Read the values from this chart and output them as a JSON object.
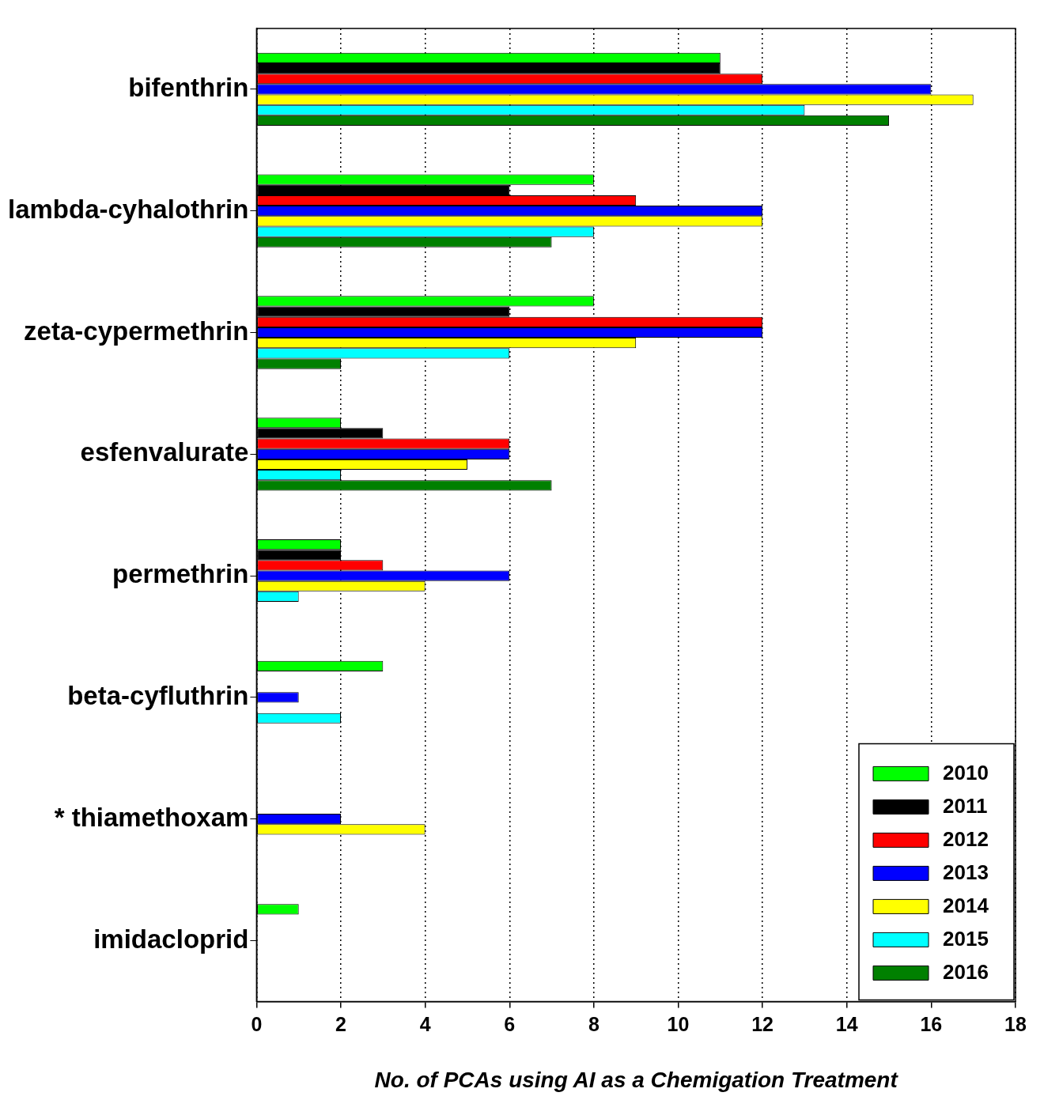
{
  "chart_data": {
    "type": "bar",
    "orientation": "horizontal",
    "categories": [
      "bifenthrin",
      "lambda-cyhalothrin",
      "zeta-cypermethrin",
      "esfenvalurate",
      "permethrin",
      "beta-cyfluthrin",
      "* thiamethoxam",
      "imidacloprid"
    ],
    "series": [
      {
        "name": "2010",
        "color": "#00ff00",
        "values": [
          11,
          8,
          8,
          2,
          2,
          3,
          0,
          1
        ]
      },
      {
        "name": "2011",
        "color": "#000000",
        "values": [
          11,
          6,
          6,
          3,
          2,
          0,
          0,
          0
        ]
      },
      {
        "name": "2012",
        "color": "#ff0000",
        "values": [
          12,
          9,
          12,
          6,
          3,
          0,
          0,
          0
        ]
      },
      {
        "name": "2013",
        "color": "#0000ff",
        "values": [
          16,
          12,
          12,
          6,
          6,
          1,
          2,
          0
        ]
      },
      {
        "name": "2014",
        "color": "#ffff00",
        "values": [
          17,
          12,
          9,
          5,
          4,
          0,
          4,
          0
        ]
      },
      {
        "name": "2015",
        "color": "#00ffff",
        "values": [
          13,
          8,
          6,
          2,
          1,
          2,
          0,
          0
        ]
      },
      {
        "name": "2016",
        "color": "#008000",
        "values": [
          15,
          7,
          2,
          7,
          0,
          0,
          0,
          0
        ]
      }
    ],
    "xlabel": "No. of PCAs using AI as a Chemigation Treatment",
    "xlim": [
      0,
      18
    ],
    "xticks": [
      0,
      2,
      4,
      6,
      8,
      10,
      12,
      14,
      16,
      18
    ],
    "grid": "x",
    "legend": "bottom right"
  }
}
